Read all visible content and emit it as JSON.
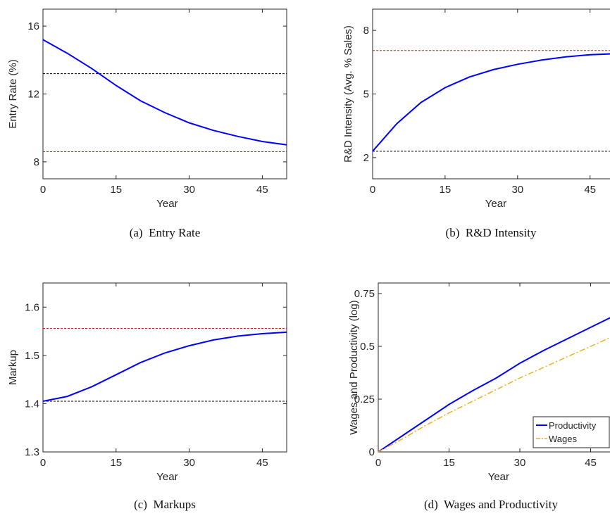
{
  "chart_data": [
    {
      "type": "line",
      "caption": "(a)  Entry Rate",
      "xlabel": "Year",
      "ylabel": "Entry Rate (%)",
      "x": [
        0,
        5,
        10,
        15,
        20,
        25,
        30,
        35,
        40,
        45,
        50
      ],
      "xlim": [
        0,
        50
      ],
      "xticks": [
        0,
        15,
        30,
        45
      ],
      "ylim": [
        7,
        17
      ],
      "yticks": [
        8,
        12,
        16
      ],
      "series": [
        {
          "color": "#0000ff",
          "values": [
            15.2,
            14.4,
            13.5,
            12.5,
            11.6,
            10.9,
            10.3,
            9.85,
            9.5,
            9.2,
            9.0
          ]
        }
      ],
      "reference_lines": [
        {
          "value": 13.2,
          "color": "#000000"
        },
        {
          "value": 8.6,
          "color": "#e41a1c"
        }
      ]
    },
    {
      "type": "line",
      "caption": "(b)  R&D Intensity",
      "xlabel": "Year",
      "ylabel": "R&D Intensity (Avg. % Sales)",
      "x": [
        0,
        5,
        10,
        15,
        20,
        25,
        30,
        35,
        40,
        45,
        50
      ],
      "xlim": [
        0,
        50
      ],
      "xticks": [
        0,
        15,
        30,
        45
      ],
      "ylim": [
        1,
        9
      ],
      "yticks": [
        2,
        5,
        8
      ],
      "series": [
        {
          "color": "#0000ff",
          "values": [
            2.3,
            3.6,
            4.6,
            5.3,
            5.8,
            6.15,
            6.4,
            6.6,
            6.75,
            6.85,
            6.9
          ]
        }
      ],
      "reference_lines": [
        {
          "value": 7.05,
          "color": "#e41a1c"
        },
        {
          "value": 2.3,
          "color": "#000000"
        }
      ]
    },
    {
      "type": "line",
      "caption": "(c)  Markups",
      "xlabel": "Year",
      "ylabel": "Markup",
      "x": [
        0,
        5,
        10,
        15,
        20,
        25,
        30,
        35,
        40,
        45,
        50
      ],
      "xlim": [
        0,
        50
      ],
      "xticks": [
        0,
        15,
        30,
        45
      ],
      "ylim": [
        1.3,
        1.65
      ],
      "yticks": [
        1.3,
        1.4,
        1.5,
        1.6
      ],
      "series": [
        {
          "color": "#0000ff",
          "values": [
            1.405,
            1.415,
            1.435,
            1.46,
            1.485,
            1.505,
            1.52,
            1.532,
            1.54,
            1.545,
            1.548
          ]
        }
      ],
      "reference_lines": [
        {
          "value": 1.556,
          "color": "#e41a1c"
        },
        {
          "value": 1.405,
          "color": "#000000"
        }
      ]
    },
    {
      "type": "line",
      "caption": "(d)  Wages and Productivity",
      "xlabel": "Year",
      "ylabel": "Wages and Productivity (log)",
      "x": [
        0,
        5,
        10,
        15,
        20,
        25,
        30,
        35,
        40,
        45,
        50
      ],
      "xlim": [
        0,
        50
      ],
      "xticks": [
        0,
        15,
        30,
        45
      ],
      "ylim": [
        0,
        0.8
      ],
      "yticks": [
        0,
        0.25,
        0.5,
        0.75
      ],
      "legend": "lower right",
      "series": [
        {
          "name": "Productivity",
          "color": "#0000ff",
          "values": [
            0,
            0.075,
            0.15,
            0.225,
            0.29,
            0.35,
            0.42,
            0.48,
            0.535,
            0.59,
            0.645
          ]
        },
        {
          "name": "Wages",
          "color": "#edb120",
          "dash": "dashdot",
          "values": [
            0,
            0.06,
            0.125,
            0.185,
            0.24,
            0.295,
            0.35,
            0.4,
            0.45,
            0.5,
            0.55
          ]
        }
      ]
    }
  ]
}
